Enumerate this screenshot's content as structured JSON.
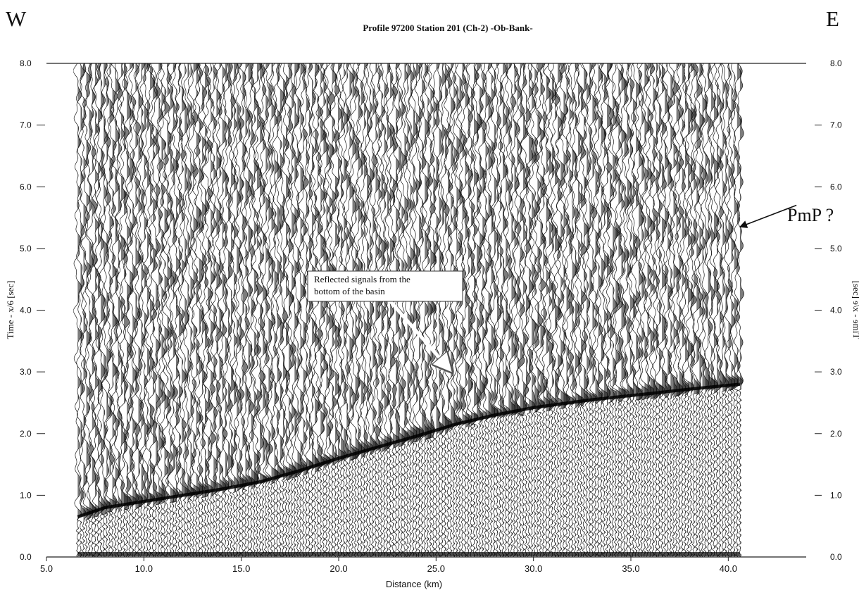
{
  "header": {
    "left_letter": "W",
    "right_letter": "E",
    "title": "Profile 97200 Station 201 (Ch-2) -Ob-Bank-"
  },
  "chart_data": {
    "type": "seismic record section",
    "title": "Profile 97200 Station 201 (Ch-2) -Ob-Bank-",
    "xlabel": "Distance (km)",
    "ylabel": "Time - x/6 [sec]",
    "right_ylabel_partial": "[sec] ɘ\\x - ɘmiT",
    "xlim": [
      5.0,
      44.0
    ],
    "ylim": [
      0.0,
      8.0
    ],
    "x_ticks": [
      5.0,
      10.0,
      15.0,
      20.0,
      25.0,
      30.0,
      35.0,
      40.0
    ],
    "x_tick_labels": [
      "5.0",
      "10.0",
      "15.0",
      "20.0",
      "25.0",
      "30.0",
      "35.0",
      "40.0"
    ],
    "y_ticks": [
      0.0,
      1.0,
      2.0,
      3.0,
      4.0,
      5.0,
      6.0,
      7.0,
      8.0
    ],
    "y_tick_labels": [
      "0.0",
      "1.0",
      "2.0",
      "3.0",
      "4.0",
      "5.0",
      "6.0",
      "7.0",
      "8.0"
    ],
    "trace_range_km": [
      6.6,
      40.6
    ],
    "first_arrival": {
      "x": [
        6.6,
        8.0,
        10.0,
        12.0,
        14.0,
        16.0,
        18.0,
        20.0,
        22.0,
        24.0,
        26.0,
        28.0,
        30.0,
        33.0,
        36.0,
        38.0,
        40.6
      ],
      "t": [
        0.65,
        0.8,
        0.9,
        1.0,
        1.1,
        1.22,
        1.4,
        1.6,
        1.78,
        1.96,
        2.15,
        2.3,
        2.42,
        2.55,
        2.65,
        2.72,
        2.8
      ]
    },
    "annotations": [
      {
        "text_lines": [
          "Reflected signals from the",
          "bottom of the basin"
        ],
        "arrow_from": [
          22.5,
          4.2
        ],
        "arrow_to": [
          25.8,
          3.0
        ]
      },
      {
        "text": "PmP ?",
        "arrow_from": [
          43.5,
          5.7
        ],
        "arrow_to": [
          40.6,
          5.35
        ]
      }
    ]
  }
}
